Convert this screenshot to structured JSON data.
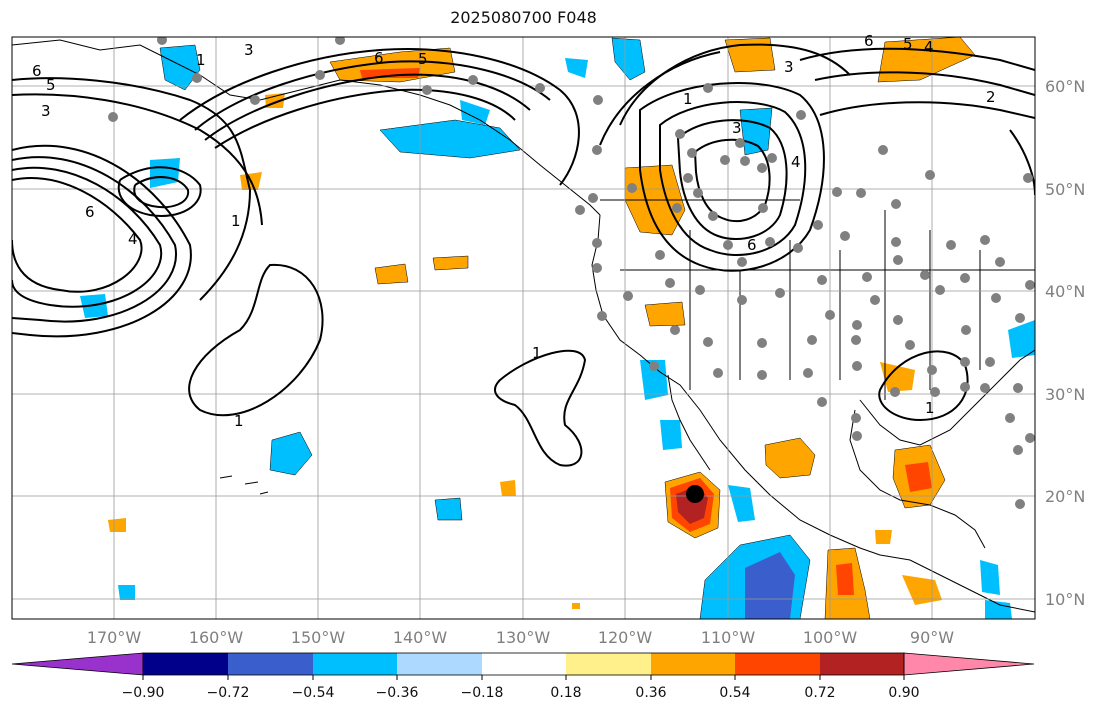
{
  "map": {
    "title": "2025080700 F048",
    "lat_labels": [
      "60°N",
      "50°N",
      "40°N",
      "30°N",
      "20°N",
      "10°N"
    ],
    "lon_labels": [
      "170°W",
      "160°W",
      "150°W",
      "140°W",
      "130°W",
      "120°W",
      "110°W",
      "100°W",
      "90°W"
    ],
    "contour_labels": [
      "6",
      "5",
      "3",
      "3",
      "1",
      "1",
      "2",
      "3",
      "4",
      "6",
      "6",
      "3",
      "4",
      "5",
      "6",
      "1",
      "1",
      "1",
      "1",
      "6",
      "5",
      "4"
    ],
    "colors": {
      "cyan": "#00bfff",
      "light_blue": "#add8ff",
      "blue": "#3a5fcd",
      "orange": "#ffa500",
      "red_orange": "#ff4500",
      "dark_red": "#b22222",
      "station": "#808080",
      "storm_center": "#000000"
    },
    "colorbar": {
      "tick_labels": [
        "−0.90",
        "−0.72",
        "−0.54",
        "−0.36",
        "−0.18",
        "0.18",
        "0.36",
        "0.54",
        "0.72",
        "0.90"
      ],
      "colors": [
        "#9932cc",
        "#00008b",
        "#3a5fcd",
        "#00bfff",
        "#add8ff",
        "#ffffff",
        "#fff08c",
        "#ffa500",
        "#ff4500",
        "#b22222",
        "#ff88aa"
      ]
    }
  }
}
